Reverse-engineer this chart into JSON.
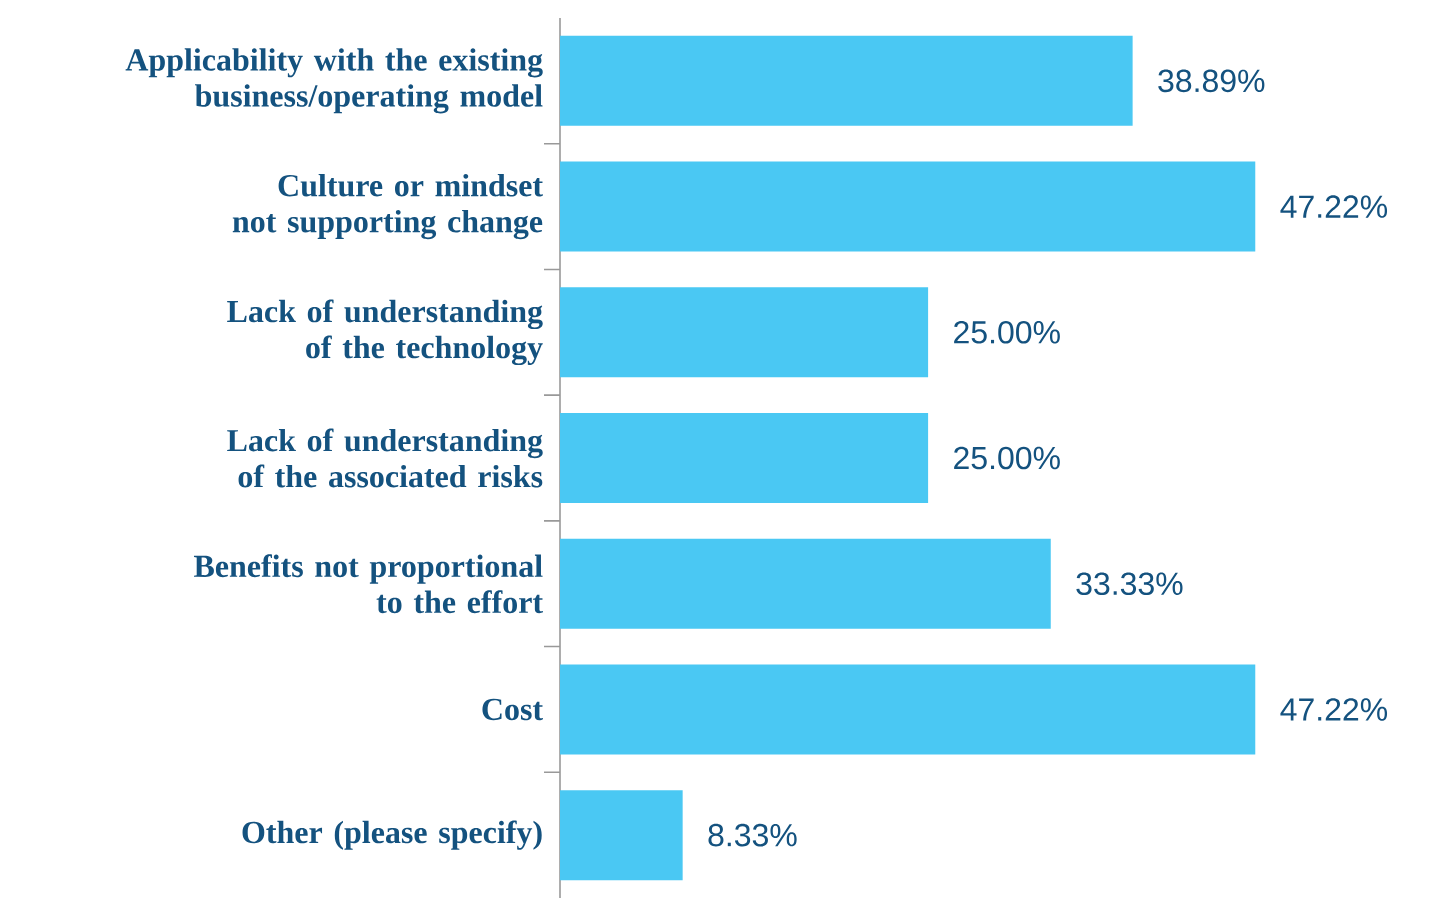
{
  "chart_data": {
    "type": "bar",
    "orientation": "horizontal",
    "categories": [
      "Applicability with the existing business/operating model",
      "Culture or mindset not supporting change",
      "Lack of understanding of the technology",
      "Lack of understanding of the associated risks",
      "Benefits not proportional to the effort",
      "Cost",
      "Other (please specify)"
    ],
    "values": [
      38.89,
      47.22,
      25.0,
      25.0,
      33.33,
      47.22,
      8.33
    ],
    "value_labels": [
      "38.89%",
      "47.22%",
      "25.00%",
      "25.00%",
      "33.33%",
      "47.22%",
      "8.33%"
    ],
    "color": "#4ac8f3"
  }
}
